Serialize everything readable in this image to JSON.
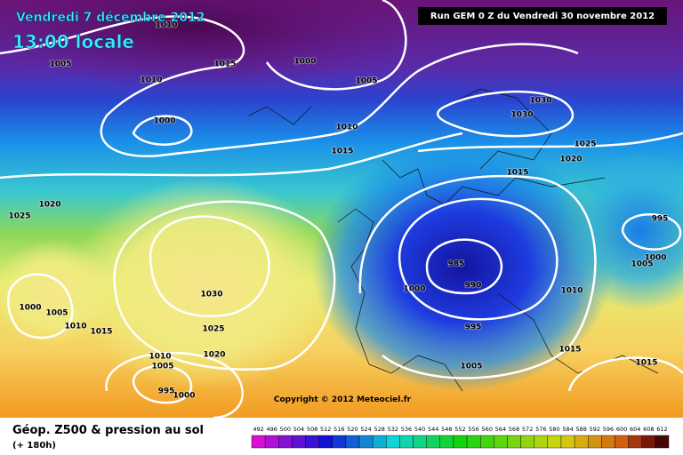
{
  "header": {
    "date": "Vendredi 7 décembre 2012",
    "time": "13:00 locale",
    "run": "Run GEM 0 Z du Vendredi 30 novembre 2012"
  },
  "isobar_labels": [
    "1010",
    "1005",
    "1015",
    "1000",
    "1010",
    "1005",
    "1000",
    "1010",
    "1015",
    "1030",
    "1030",
    "1025",
    "1020",
    "1015",
    "995",
    "1000",
    "1005",
    "1025",
    "1020",
    "985",
    "990",
    "1000",
    "1010",
    "1030",
    "1000",
    "1005",
    "1010",
    "1015",
    "1025",
    "995",
    "1020",
    "1010",
    "1005",
    "1015",
    "1015",
    "1005",
    "995",
    "1000"
  ],
  "copyright": "Copyright © 2012 Meteociel.fr",
  "footer": {
    "title": "Géop. Z500 & pression au sol",
    "lead": "(+ 180h)"
  },
  "scale": {
    "labels": [
      "492",
      "496",
      "500",
      "504",
      "508",
      "512",
      "516",
      "520",
      "524",
      "528",
      "532",
      "536",
      "540",
      "544",
      "548",
      "552",
      "556",
      "560",
      "564",
      "568",
      "572",
      "576",
      "580",
      "584",
      "588",
      "592",
      "596",
      "600",
      "604",
      "608",
      "612"
    ]
  }
}
